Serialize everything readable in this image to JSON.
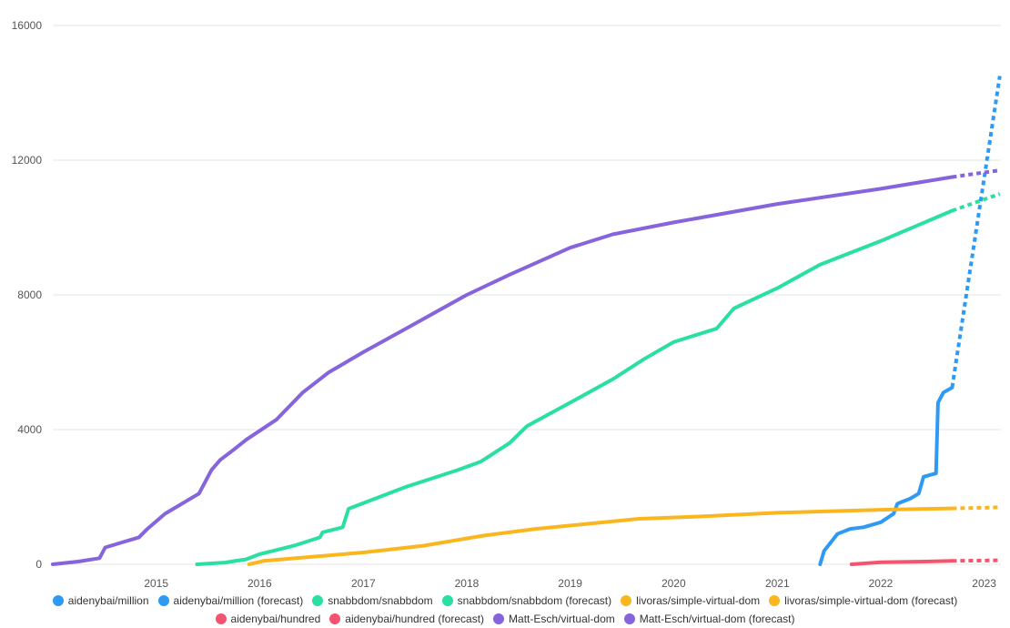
{
  "chart_data": {
    "type": "line",
    "x_type": "date",
    "xlim": [
      "2014-01-01",
      "2023-03-01"
    ],
    "ylim": [
      0,
      16000
    ],
    "y_ticks": [
      0,
      4000,
      8000,
      12000,
      16000
    ],
    "x_ticks": [
      "2015",
      "2016",
      "2017",
      "2018",
      "2019",
      "2020",
      "2021",
      "2022",
      "2023"
    ],
    "grid": true,
    "legend_position": "bottom",
    "series": [
      {
        "name": "aidenybai/million",
        "color": "#2f9af3",
        "dashed": false,
        "points": [
          [
            "2021-06-01",
            0
          ],
          [
            "2021-06-15",
            400
          ],
          [
            "2021-08-01",
            900
          ],
          [
            "2021-09-15",
            1050
          ],
          [
            "2021-11-01",
            1100
          ],
          [
            "2022-01-01",
            1250
          ],
          [
            "2022-02-15",
            1500
          ],
          [
            "2022-03-01",
            1800
          ],
          [
            "2022-04-15",
            1950
          ],
          [
            "2022-05-15",
            2100
          ],
          [
            "2022-06-01",
            2600
          ],
          [
            "2022-07-15",
            2700
          ],
          [
            "2022-07-22",
            4800
          ],
          [
            "2022-08-10",
            5100
          ],
          [
            "2022-09-10",
            5250
          ]
        ]
      },
      {
        "name": "aidenybai/million (forecast)",
        "color": "#2f9af3",
        "dashed": true,
        "points": [
          [
            "2022-09-10",
            5250
          ],
          [
            "2023-02-25",
            14500
          ]
        ]
      },
      {
        "name": "snabbdom/snabbdom",
        "color": "#29e0a0",
        "dashed": false,
        "points": [
          [
            "2015-05-25",
            0
          ],
          [
            "2015-09-01",
            50
          ],
          [
            "2015-11-15",
            150
          ],
          [
            "2016-01-01",
            300
          ],
          [
            "2016-05-01",
            550
          ],
          [
            "2016-08-01",
            800
          ],
          [
            "2016-08-10",
            950
          ],
          [
            "2016-10-20",
            1100
          ],
          [
            "2016-11-10",
            1650
          ],
          [
            "2017-06-01",
            2300
          ],
          [
            "2017-12-01",
            2800
          ],
          [
            "2018-02-20",
            3050
          ],
          [
            "2018-06-01",
            3600
          ],
          [
            "2018-08-01",
            4100
          ],
          [
            "2019-01-01",
            4800
          ],
          [
            "2019-06-01",
            5500
          ],
          [
            "2019-09-20",
            6100
          ],
          [
            "2020-01-01",
            6600
          ],
          [
            "2020-06-01",
            7000
          ],
          [
            "2020-08-01",
            7600
          ],
          [
            "2021-01-01",
            8200
          ],
          [
            "2021-06-01",
            8900
          ],
          [
            "2022-01-01",
            9600
          ],
          [
            "2022-09-10",
            10500
          ]
        ]
      },
      {
        "name": "snabbdom/snabbdom (forecast)",
        "color": "#29e0a0",
        "dashed": true,
        "points": [
          [
            "2022-09-10",
            10500
          ],
          [
            "2023-02-25",
            11000
          ]
        ]
      },
      {
        "name": "livoras/simple-virtual-dom",
        "color": "#f9b61f",
        "dashed": false,
        "points": [
          [
            "2015-11-25",
            0
          ],
          [
            "2016-01-15",
            100
          ],
          [
            "2016-06-01",
            200
          ],
          [
            "2017-01-01",
            350
          ],
          [
            "2017-08-01",
            550
          ],
          [
            "2018-03-01",
            850
          ],
          [
            "2018-09-01",
            1050
          ],
          [
            "2019-03-01",
            1200
          ],
          [
            "2019-09-01",
            1350
          ],
          [
            "2020-04-01",
            1420
          ],
          [
            "2021-01-01",
            1530
          ],
          [
            "2022-01-01",
            1620
          ],
          [
            "2022-09-10",
            1660
          ]
        ]
      },
      {
        "name": "livoras/simple-virtual-dom (forecast)",
        "color": "#f9b61f",
        "dashed": true,
        "points": [
          [
            "2022-09-10",
            1660
          ],
          [
            "2023-02-25",
            1690
          ]
        ]
      },
      {
        "name": "aidenybai/hundred",
        "color": "#f5546e",
        "dashed": false,
        "points": [
          [
            "2021-09-20",
            0
          ],
          [
            "2022-01-01",
            60
          ],
          [
            "2022-06-01",
            80
          ],
          [
            "2022-09-10",
            100
          ]
        ]
      },
      {
        "name": "aidenybai/hundred (forecast)",
        "color": "#f5546e",
        "dashed": true,
        "points": [
          [
            "2022-09-10",
            100
          ],
          [
            "2023-02-25",
            120
          ]
        ]
      },
      {
        "name": "Matt-Esch/virtual-dom",
        "color": "#8664dc",
        "dashed": false,
        "points": [
          [
            "2014-01-01",
            0
          ],
          [
            "2014-04-01",
            80
          ],
          [
            "2014-06-15",
            180
          ],
          [
            "2014-07-05",
            500
          ],
          [
            "2014-11-01",
            800
          ],
          [
            "2014-12-01",
            1050
          ],
          [
            "2015-02-01",
            1500
          ],
          [
            "2015-06-01",
            2100
          ],
          [
            "2015-07-15",
            2800
          ],
          [
            "2015-08-15",
            3100
          ],
          [
            "2015-10-01",
            3400
          ],
          [
            "2015-11-15",
            3700
          ],
          [
            "2016-03-01",
            4300
          ],
          [
            "2016-06-01",
            5100
          ],
          [
            "2016-09-01",
            5700
          ],
          [
            "2017-01-01",
            6300
          ],
          [
            "2017-06-01",
            7000
          ],
          [
            "2018-01-01",
            8000
          ],
          [
            "2018-06-01",
            8600
          ],
          [
            "2019-01-01",
            9400
          ],
          [
            "2019-06-01",
            9800
          ],
          [
            "2020-01-01",
            10150
          ],
          [
            "2021-01-01",
            10700
          ],
          [
            "2022-01-01",
            11150
          ],
          [
            "2022-09-10",
            11500
          ]
        ]
      },
      {
        "name": "Matt-Esch/virtual-dom (forecast)",
        "color": "#8664dc",
        "dashed": true,
        "points": [
          [
            "2022-09-10",
            11500
          ],
          [
            "2023-02-25",
            11700
          ]
        ]
      }
    ]
  }
}
